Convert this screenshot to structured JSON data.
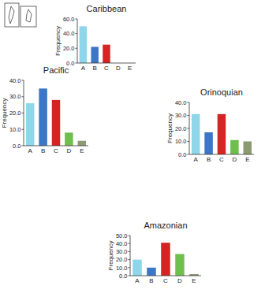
{
  "chart_data": [
    {
      "type": "bar",
      "title": "Caribbean",
      "y_label": "Frequency",
      "categories": [
        "A",
        "B",
        "C",
        "D",
        "E"
      ],
      "values": [
        50,
        22,
        25,
        0,
        0
      ],
      "colors": [
        "#8fd6ea",
        "#3b77c6",
        "#d42424",
        "#6fbf4f",
        "#8c9a72"
      ],
      "ylim": [
        0,
        60
      ],
      "yticks": [
        {
          "value": 0,
          "label": "0.0"
        },
        {
          "value": 20,
          "label": "20.0"
        },
        {
          "value": 40,
          "label": "40.0"
        },
        {
          "value": 60,
          "label": "60.0"
        }
      ],
      "grid": false
    },
    {
      "type": "bar",
      "title": "Pacific",
      "y_label": "Frequency",
      "categories": [
        "A",
        "B",
        "C",
        "D",
        "E"
      ],
      "values": [
        26,
        35,
        28,
        8,
        3
      ],
      "colors": [
        "#8fd6ea",
        "#3b77c6",
        "#d42424",
        "#6fbf4f",
        "#8c9a72"
      ],
      "ylim": [
        0,
        40
      ],
      "yticks": [
        {
          "value": 0,
          "label": "0.0"
        },
        {
          "value": 10,
          "label": "10.0"
        },
        {
          "value": 20,
          "label": "20.0"
        },
        {
          "value": 30,
          "label": "30.0"
        },
        {
          "value": 40,
          "label": "40.0"
        }
      ],
      "grid": false
    },
    {
      "type": "bar",
      "title": "Orinoquian",
      "y_label": "Frequency",
      "categories": [
        "A",
        "B",
        "C",
        "D",
        "E"
      ],
      "values": [
        31,
        17,
        31,
        11,
        10
      ],
      "colors": [
        "#8fd6ea",
        "#3b77c6",
        "#d42424",
        "#6fbf4f",
        "#8c9a72"
      ],
      "ylim": [
        0,
        40
      ],
      "yticks": [
        {
          "value": 0,
          "label": "0.0"
        },
        {
          "value": 10,
          "label": "10.0"
        },
        {
          "value": 20,
          "label": "20.0"
        },
        {
          "value": 30,
          "label": "30.0"
        },
        {
          "value": 40,
          "label": "40.0"
        }
      ],
      "grid": false
    },
    {
      "type": "bar",
      "title": "Amazonian",
      "y_label": "Frequency",
      "categories": [
        "A",
        "B",
        "C",
        "D",
        "E"
      ],
      "values": [
        20,
        10,
        41,
        27,
        2
      ],
      "colors": [
        "#8fd6ea",
        "#3b77c6",
        "#d42424",
        "#6fbf4f",
        "#8c9a72"
      ],
      "ylim": [
        0,
        50
      ],
      "yticks": [
        {
          "value": 0,
          "label": "0.0"
        },
        {
          "value": 10,
          "label": "10.0"
        },
        {
          "value": 20,
          "label": "20.0"
        },
        {
          "value": 30,
          "label": "30.0"
        },
        {
          "value": 40,
          "label": "40.0"
        },
        {
          "value": 50,
          "label": "50.0"
        }
      ],
      "grid": false
    }
  ]
}
